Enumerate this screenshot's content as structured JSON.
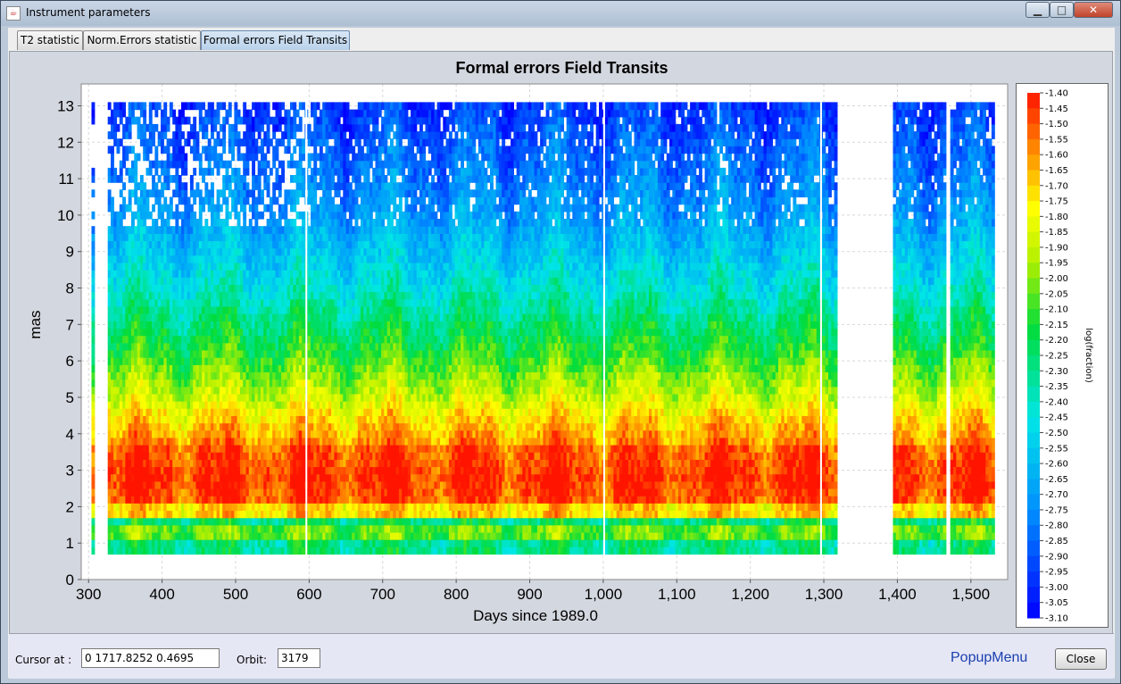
{
  "window": {
    "title": "Instrument parameters",
    "buttons": {
      "minimize": "▁",
      "maximize": "□",
      "close": "✕"
    }
  },
  "tabs": [
    {
      "label": "T2 statistic",
      "active": false
    },
    {
      "label": "Norm.Errors statistic",
      "active": false
    },
    {
      "label": "Formal errors Field Transits",
      "active": true
    }
  ],
  "chart_data": {
    "type": "heatmap",
    "title": "Formal errors Field Transits",
    "xlabel": "Days since 1989.0",
    "ylabel": "mas",
    "xlim": [
      290,
      1550
    ],
    "ylim": [
      0,
      13.6
    ],
    "x_ticks": [
      "300",
      "400",
      "500",
      "600",
      "700",
      "800",
      "900",
      "1,000",
      "1,100",
      "1,200",
      "1,300",
      "1,400",
      "1,500"
    ],
    "x_tick_values": [
      300,
      400,
      500,
      600,
      700,
      800,
      900,
      1000,
      1100,
      1200,
      1300,
      1400,
      1500
    ],
    "y_ticks": [
      "0",
      "1",
      "2",
      "3",
      "4",
      "5",
      "6",
      "7",
      "8",
      "9",
      "10",
      "11",
      "12",
      "13"
    ],
    "y_tick_values": [
      0,
      1,
      2,
      3,
      4,
      5,
      6,
      7,
      8,
      9,
      10,
      11,
      12,
      13
    ],
    "grid": true,
    "data_segments": [
      [
        304,
        307
      ],
      [
        326,
        1316
      ],
      [
        1394,
        1466
      ],
      [
        1472,
        1531
      ]
    ],
    "colorbar": {
      "label": "log(fraction)",
      "min": -3.1,
      "max": -1.4,
      "ticks": [
        "-1.40",
        "-1.45",
        "-1.50",
        "-1.55",
        "-1.60",
        "-1.65",
        "-1.70",
        "-1.75",
        "-1.80",
        "-1.85",
        "-1.90",
        "-1.95",
        "-2.00",
        "-2.05",
        "-2.10",
        "-2.15",
        "-2.20",
        "-2.25",
        "-2.30",
        "-2.35",
        "-2.40",
        "-2.45",
        "-2.50",
        "-2.55",
        "-2.60",
        "-2.65",
        "-2.70",
        "-2.75",
        "-2.80",
        "-2.85",
        "-2.90",
        "-2.95",
        "-3.00",
        "-3.05",
        "-3.10"
      ]
    }
  },
  "bottom": {
    "cursor_label": "Cursor at :",
    "cursor_value": "0   1717.8252    0.4695",
    "orbit_label": "Orbit:",
    "orbit_value": "3179",
    "popup_label": "PopupMenu",
    "close_label": "Close"
  }
}
